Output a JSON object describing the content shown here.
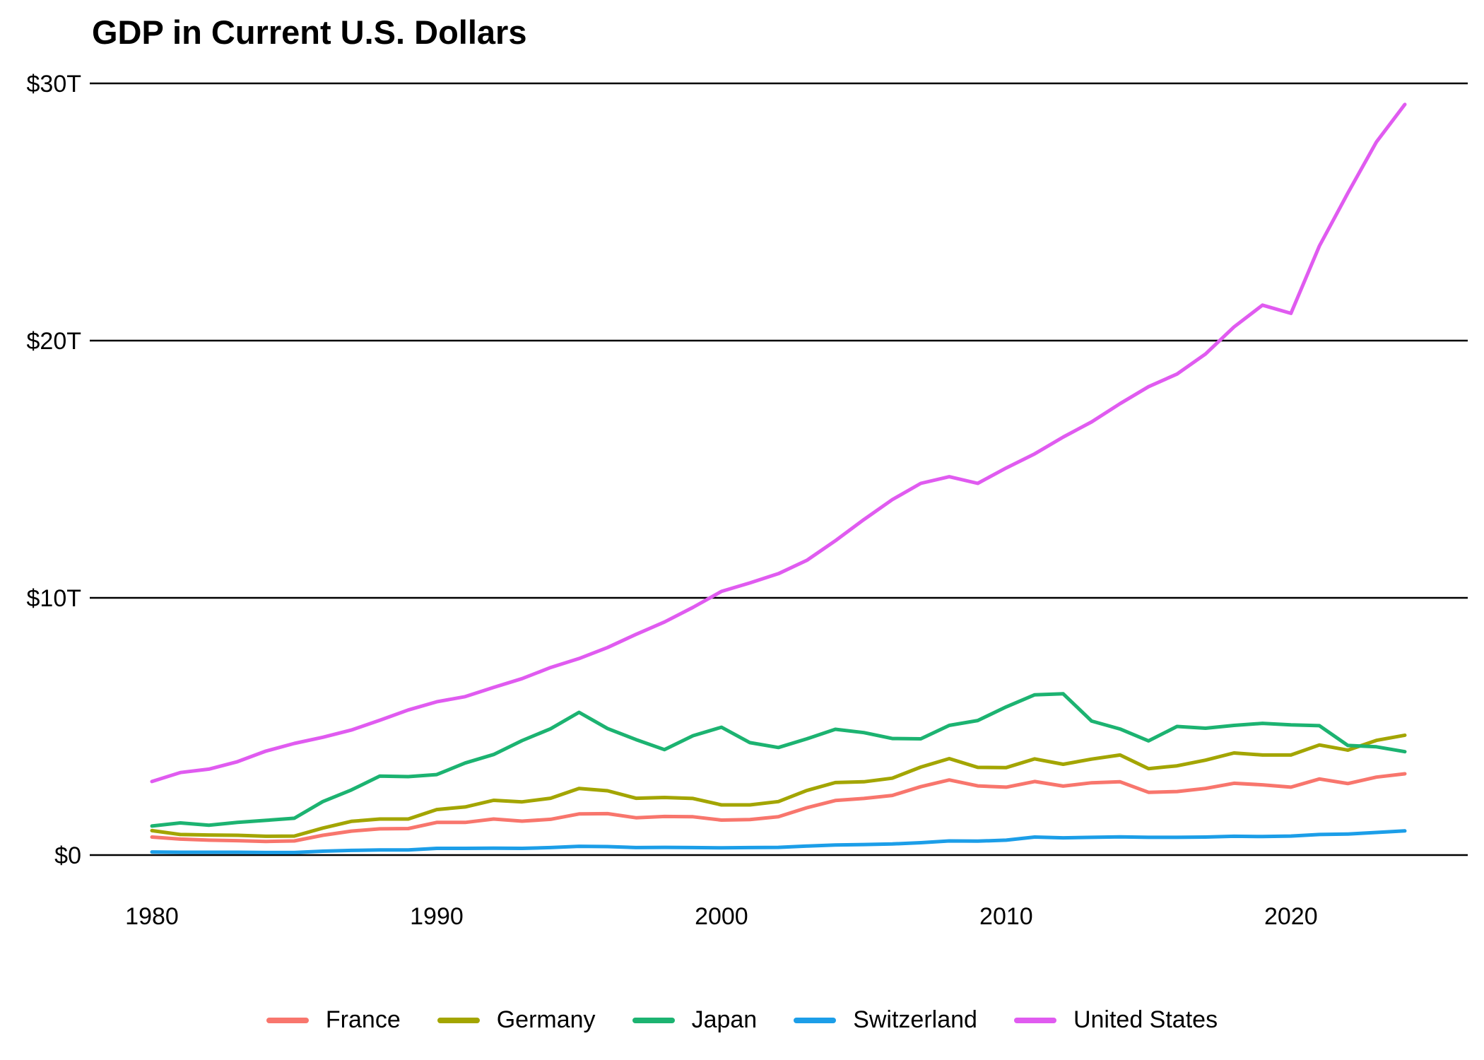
{
  "chart_data": {
    "type": "line",
    "title": "GDP in Current U.S. Dollars",
    "xlabel": "",
    "ylabel": "",
    "unit": "trillion USD",
    "grid": "horizontal",
    "legend_position": "bottom",
    "xlim": [
      1980,
      2024
    ],
    "ylim": [
      0,
      30
    ],
    "x_ticks": [
      {
        "value": 1980,
        "label": "1980"
      },
      {
        "value": 1990,
        "label": "1990"
      },
      {
        "value": 2000,
        "label": "2000"
      },
      {
        "value": 2010,
        "label": "2010"
      },
      {
        "value": 2020,
        "label": "2020"
      }
    ],
    "y_ticks": [
      {
        "value": 0,
        "label": "$0"
      },
      {
        "value": 10,
        "label": "$10T"
      },
      {
        "value": 20,
        "label": "$20T"
      },
      {
        "value": 30,
        "label": "$30T"
      }
    ],
    "x": [
      1980,
      1981,
      1982,
      1983,
      1984,
      1985,
      1986,
      1987,
      1988,
      1989,
      1990,
      1991,
      1992,
      1993,
      1994,
      1995,
      1996,
      1997,
      1998,
      1999,
      2000,
      2001,
      2002,
      2003,
      2004,
      2005,
      2006,
      2007,
      2008,
      2009,
      2010,
      2011,
      2012,
      2013,
      2014,
      2015,
      2016,
      2017,
      2018,
      2019,
      2020,
      2021,
      2022,
      2023,
      2024
    ],
    "series": [
      {
        "name": "France",
        "color": "#F8766D",
        "values": [
          0.7,
          0.62,
          0.58,
          0.56,
          0.53,
          0.55,
          0.77,
          0.93,
          1.02,
          1.03,
          1.27,
          1.27,
          1.4,
          1.32,
          1.39,
          1.6,
          1.61,
          1.45,
          1.5,
          1.49,
          1.36,
          1.38,
          1.49,
          1.84,
          2.12,
          2.2,
          2.32,
          2.66,
          2.92,
          2.69,
          2.64,
          2.86,
          2.68,
          2.81,
          2.85,
          2.44,
          2.47,
          2.59,
          2.79,
          2.73,
          2.64,
          2.96,
          2.78,
          3.03,
          3.16
        ]
      },
      {
        "name": "Germany",
        "color": "#A3A500",
        "values": [
          0.95,
          0.8,
          0.78,
          0.77,
          0.73,
          0.74,
          1.05,
          1.31,
          1.4,
          1.4,
          1.77,
          1.87,
          2.13,
          2.07,
          2.21,
          2.59,
          2.5,
          2.21,
          2.24,
          2.2,
          1.95,
          1.95,
          2.08,
          2.51,
          2.82,
          2.85,
          2.99,
          3.42,
          3.75,
          3.41,
          3.4,
          3.74,
          3.53,
          3.73,
          3.89,
          3.36,
          3.47,
          3.69,
          3.97,
          3.89,
          3.89,
          4.28,
          4.08,
          4.46,
          4.66
        ]
      },
      {
        "name": "Japan",
        "color": "#1CB371",
        "values": [
          1.13,
          1.25,
          1.16,
          1.27,
          1.35,
          1.43,
          2.08,
          2.53,
          3.07,
          3.05,
          3.13,
          3.58,
          3.91,
          4.45,
          4.91,
          5.55,
          4.92,
          4.49,
          4.1,
          4.64,
          4.97,
          4.37,
          4.18,
          4.52,
          4.89,
          4.76,
          4.53,
          4.52,
          5.04,
          5.23,
          5.76,
          6.23,
          6.27,
          5.21,
          4.9,
          4.44,
          5.0,
          4.93,
          5.04,
          5.12,
          5.06,
          5.03,
          4.26,
          4.21,
          4.02
        ]
      },
      {
        "name": "Switzerland",
        "color": "#1C9EE8",
        "values": [
          0.12,
          0.11,
          0.11,
          0.11,
          0.1,
          0.1,
          0.15,
          0.18,
          0.2,
          0.2,
          0.26,
          0.26,
          0.27,
          0.26,
          0.29,
          0.34,
          0.33,
          0.29,
          0.3,
          0.29,
          0.28,
          0.29,
          0.3,
          0.35,
          0.39,
          0.41,
          0.43,
          0.48,
          0.55,
          0.54,
          0.58,
          0.7,
          0.67,
          0.69,
          0.71,
          0.69,
          0.69,
          0.7,
          0.73,
          0.72,
          0.74,
          0.8,
          0.82,
          0.88,
          0.94
        ]
      },
      {
        "name": "United States",
        "color": "#E05BF0",
        "values": [
          2.86,
          3.21,
          3.34,
          3.63,
          4.04,
          4.34,
          4.58,
          4.86,
          5.24,
          5.64,
          5.96,
          6.16,
          6.52,
          6.86,
          7.29,
          7.64,
          8.07,
          8.58,
          9.06,
          9.63,
          10.25,
          10.58,
          10.94,
          11.46,
          12.22,
          13.04,
          13.82,
          14.45,
          14.71,
          14.45,
          15.05,
          15.6,
          16.25,
          16.84,
          17.55,
          18.21,
          18.7,
          19.48,
          20.53,
          21.38,
          21.06,
          23.68,
          25.74,
          27.72,
          29.18
        ]
      }
    ]
  }
}
